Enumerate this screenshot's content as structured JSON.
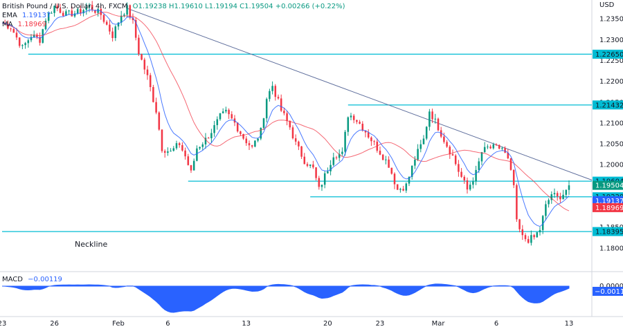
{
  "header": {
    "symbol": "British Pound / U.S. Dollar, 4h, FXCM",
    "ohlc": "O1.19238 H1.19610 L1.19194 C1.19504 +0.00266 (+0.22%)",
    "ema_label": "EMA",
    "ema_value": "1.19137",
    "ma_label": "MA",
    "ma_value": "1.18969"
  },
  "macd": {
    "label": "MACD",
    "value": "−0.00119",
    "badge": "−0.00119"
  },
  "annotations": {
    "neckline": "Neckline"
  },
  "colors": {
    "up": "#089981",
    "down": "#f23645",
    "ema": "#2962ff",
    "ma": "#f23645",
    "level": "#00bcd4",
    "trendline": "#5b6b9a",
    "macd_fill": "#2962ff"
  },
  "chart_data": {
    "type": "candlestick",
    "y_unit": "USD",
    "ylim": [
      1.1745,
      1.2395
    ],
    "yticks": [
      1.235,
      1.23,
      1.225,
      1.22,
      1.215,
      1.21,
      1.205,
      1.2,
      1.195,
      1.19,
      1.185,
      1.18
    ],
    "xticks": [
      "23",
      "26",
      "Feb",
      "6",
      "13",
      "20",
      "23",
      "Mar",
      "6",
      "13"
    ],
    "xtick_index": [
      0,
      18,
      40,
      57,
      84,
      112,
      130,
      150,
      170,
      195
    ],
    "n_bars": 195,
    "price_badges": [
      {
        "value": "1.22650",
        "kind": "level"
      },
      {
        "value": "1.21432",
        "kind": "level"
      },
      {
        "value": "1.19604",
        "kind": "level"
      },
      {
        "value": "1.19504",
        "kind": "last"
      },
      {
        "value": "1.19229",
        "kind": "level"
      },
      {
        "value": "1.19137",
        "kind": "ema"
      },
      {
        "value": "1.18969",
        "kind": "ma"
      },
      {
        "value": "1.18395",
        "kind": "level"
      }
    ],
    "horizontal_levels": [
      {
        "price": 1.2265,
        "from": 9
      },
      {
        "price": 1.21432,
        "from": 119
      },
      {
        "price": 1.19604,
        "from": 64
      },
      {
        "price": 1.19229,
        "from": 106
      },
      {
        "price": 1.18395,
        "from": 0
      }
    ],
    "trendline": [
      [
        43,
        1.2375
      ],
      [
        195,
        1.1965
      ]
    ],
    "path": [
      [
        0,
        1.234
      ],
      [
        3,
        1.233
      ],
      [
        7,
        1.228
      ],
      [
        10,
        1.231
      ],
      [
        13,
        1.23
      ],
      [
        15,
        1.235
      ],
      [
        18,
        1.238
      ],
      [
        22,
        1.236
      ],
      [
        26,
        1.2365
      ],
      [
        30,
        1.238
      ],
      [
        34,
        1.236
      ],
      [
        38,
        1.231
      ],
      [
        41,
        1.236
      ],
      [
        43,
        1.2375
      ],
      [
        45,
        1.234
      ],
      [
        47,
        1.227
      ],
      [
        50,
        1.221
      ],
      [
        53,
        1.213
      ],
      [
        55,
        1.204
      ],
      [
        58,
        1.203
      ],
      [
        61,
        1.205
      ],
      [
        63,
        1.202
      ],
      [
        65,
        1.198
      ],
      [
        67,
        1.204
      ],
      [
        70,
        1.206
      ],
      [
        73,
        1.209
      ],
      [
        75,
        1.2115
      ],
      [
        77,
        1.2125
      ],
      [
        80,
        1.21
      ],
      [
        83,
        1.2065
      ],
      [
        86,
        1.204
      ],
      [
        89,
        1.208
      ],
      [
        91,
        1.216
      ],
      [
        93,
        1.219
      ],
      [
        96,
        1.213
      ],
      [
        99,
        1.209
      ],
      [
        101,
        1.205
      ],
      [
        104,
        1.201
      ],
      [
        107,
        1.199
      ],
      [
        109,
        1.194
      ],
      [
        112,
        1.199
      ],
      [
        114,
        1.2025
      ],
      [
        117,
        1.2025
      ],
      [
        119,
        1.212
      ],
      [
        121,
        1.2115
      ],
      [
        124,
        1.209
      ],
      [
        127,
        1.206
      ],
      [
        130,
        1.203
      ],
      [
        133,
        1.2
      ],
      [
        136,
        1.194
      ],
      [
        139,
        1.195
      ],
      [
        142,
        1.2015
      ],
      [
        145,
        1.206
      ],
      [
        147,
        1.213
      ],
      [
        150,
        1.209
      ],
      [
        152,
        1.206
      ],
      [
        155,
        1.202
      ],
      [
        157,
        1.1985
      ],
      [
        160,
        1.194
      ],
      [
        163,
        1.198
      ],
      [
        165,
        1.203
      ],
      [
        167,
        1.204
      ],
      [
        170,
        1.204
      ],
      [
        172,
        1.204
      ],
      [
        174,
        1.201
      ],
      [
        176,
        1.195
      ],
      [
        177,
        1.186
      ],
      [
        179,
        1.1825
      ],
      [
        181,
        1.182
      ],
      [
        183,
        1.1825
      ],
      [
        185,
        1.1845
      ],
      [
        187,
        1.19
      ],
      [
        189,
        1.193
      ],
      [
        191,
        1.192
      ],
      [
        193,
        1.193
      ],
      [
        195,
        1.195
      ]
    ],
    "ema_value": 1.19137,
    "ma_value": 1.18969,
    "last_close": 1.19504
  }
}
